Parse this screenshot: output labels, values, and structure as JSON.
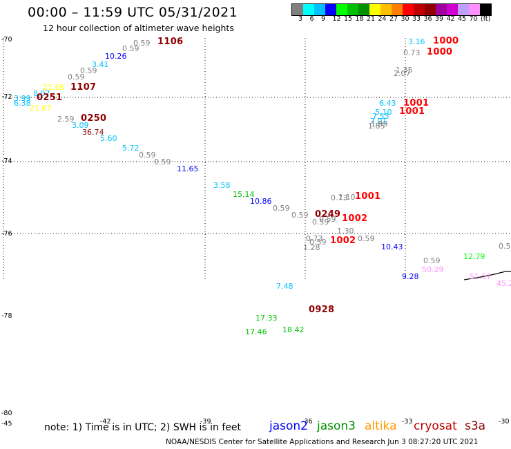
{
  "header": {
    "title": "00:00 – 11:59 UTC 05/31/2021",
    "subtitle": "12 hour collection of altimeter wave heights"
  },
  "color_scale": {
    "colors": [
      "#808080",
      "#00ffff",
      "#00c0ff",
      "#0000ff",
      "#00ff00",
      "#00c000",
      "#009000",
      "#ffff00",
      "#ffc000",
      "#ff8000",
      "#ff0000",
      "#c00000",
      "#900000",
      "#a000a0",
      "#d000d0",
      "#c0a0ff",
      "#ff90ff",
      "#000000"
    ],
    "labels": [
      "3",
      "6",
      "9",
      "12",
      "15",
      "18",
      "21",
      "24",
      "27",
      "30",
      "33",
      "36",
      "39",
      "42",
      "45",
      "70",
      "(ft)"
    ]
  },
  "axes": {
    "lat_labels": [
      "-70",
      "-72",
      "-74",
      "-76",
      "-78",
      "-80"
    ],
    "lon_bottom": [
      "-45",
      "-42",
      "-39",
      "-36",
      "-33",
      "-30"
    ]
  },
  "labels": [
    {
      "t": "0.59",
      "c": "#808080"
    },
    {
      "t": "1106",
      "c": "#900000"
    },
    {
      "t": "0.59",
      "c": "#808080"
    },
    {
      "t": "10.26",
      "c": "#0000ff"
    },
    {
      "t": "3.41",
      "c": "#00c0ff"
    },
    {
      "t": "0.59",
      "c": "#808080"
    },
    {
      "t": "0.59",
      "c": "#808080"
    },
    {
      "t": "21.66",
      "c": "#ffff00"
    },
    {
      "t": "1107",
      "c": "#900000"
    },
    {
      "t": "8.07",
      "c": "#00c0ff"
    },
    {
      "t": "3.99",
      "c": "#00c0ff"
    },
    {
      "t": "0251",
      "c": "#900000"
    },
    {
      "t": "6.38",
      "c": "#00c0ff"
    },
    {
      "t": "21.67",
      "c": "#ffff00"
    },
    {
      "t": "2.59",
      "c": "#808080"
    },
    {
      "t": "0250",
      "c": "#900000"
    },
    {
      "t": "3.09",
      "c": "#00c0ff"
    },
    {
      "t": "36.74",
      "c": "#900000"
    },
    {
      "t": "5.60",
      "c": "#00c0ff"
    },
    {
      "t": "5.72",
      "c": "#00c0ff"
    },
    {
      "t": "0.59",
      "c": "#808080"
    },
    {
      "t": "0.59",
      "c": "#808080"
    },
    {
      "t": "11.65",
      "c": "#0000ff"
    },
    {
      "t": "3.58",
      "c": "#00c0ff"
    },
    {
      "t": "15.14",
      "c": "#00c000"
    },
    {
      "t": "10.86",
      "c": "#0000ff"
    },
    {
      "t": "0.59",
      "c": "#808080"
    },
    {
      "t": "0.59",
      "c": "#808080"
    },
    {
      "t": "3.16",
      "c": "#00c0ff"
    },
    {
      "t": "1000",
      "c": "#ff0000"
    },
    {
      "t": "0.73",
      "c": "#808080"
    },
    {
      "t": "1000",
      "c": "#ff0000"
    },
    {
      "t": "1.35",
      "c": "#808080"
    },
    {
      "t": "2.07",
      "c": "#808080"
    },
    {
      "t": "6.43",
      "c": "#00c0ff"
    },
    {
      "t": "1001",
      "c": "#ff0000"
    },
    {
      "t": "5.10",
      "c": "#00c0ff"
    },
    {
      "t": "1001",
      "c": "#ff0000"
    },
    {
      "t": "7.53",
      "c": "#00c0ff"
    },
    {
      "t": "7.01",
      "c": "#00c0ff"
    },
    {
      "t": "1.89",
      "c": "#808080"
    },
    {
      "t": "1.85",
      "c": "#808080"
    },
    {
      "t": "0.73",
      "c": "#808080"
    },
    {
      "t": "1.10",
      "c": "#808080"
    },
    {
      "t": "1001",
      "c": "#ff0000"
    },
    {
      "t": "0249",
      "c": "#900000"
    },
    {
      "t": "0.59",
      "c": "#808080"
    },
    {
      "t": "1002",
      "c": "#ff0000"
    },
    {
      "t": "0.59",
      "c": "#808080"
    },
    {
      "t": "1.30",
      "c": "#808080"
    },
    {
      "t": "0.73",
      "c": "#808080"
    },
    {
      "t": "0.59",
      "c": "#808080"
    },
    {
      "t": "1002",
      "c": "#ff0000"
    },
    {
      "t": "0.59",
      "c": "#808080"
    },
    {
      "t": "1.28",
      "c": "#808080"
    },
    {
      "t": "10.43",
      "c": "#0000ff"
    },
    {
      "t": "0.59",
      "c": "#808080"
    },
    {
      "t": "50.29",
      "c": "#ff90ff"
    },
    {
      "t": "12.79",
      "c": "#00ff00"
    },
    {
      "t": "0.5",
      "c": "#808080"
    },
    {
      "t": "9.28",
      "c": "#0000ff"
    },
    {
      "t": "51.57",
      "c": "#ff90ff"
    },
    {
      "t": "45.2",
      "c": "#ff90ff"
    },
    {
      "t": "7.48",
      "c": "#00c0ff"
    },
    {
      "t": "18.42",
      "c": "#00c000"
    },
    {
      "t": "0928",
      "c": "#900000"
    },
    {
      "t": "17.33",
      "c": "#00c000"
    },
    {
      "t": "17.46",
      "c": "#00c000"
    }
  ],
  "legend": {
    "note": "note: 1) Time is in UTC; 2) SWH is in feet",
    "satellites": [
      {
        "name": "jason2",
        "color": "#0000ff"
      },
      {
        "name": "jason3",
        "color": "#009000"
      },
      {
        "name": "altika",
        "color": "#ff9900"
      },
      {
        "name": "cryosat",
        "color": "#c00000"
      },
      {
        "name": "s3a",
        "color": "#900000"
      }
    ]
  },
  "footer": "NOAA/NESDIS Center for Satellite Applications and Research   Jun  3 08:27:20 UTC 2021"
}
